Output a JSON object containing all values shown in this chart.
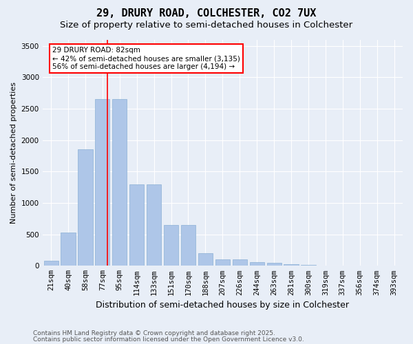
{
  "title1": "29, DRURY ROAD, COLCHESTER, CO2 7UX",
  "title2": "Size of property relative to semi-detached houses in Colchester",
  "xlabel": "Distribution of semi-detached houses by size in Colchester",
  "ylabel": "Number of semi-detached properties",
  "categories": [
    "21sqm",
    "40sqm",
    "58sqm",
    "77sqm",
    "95sqm",
    "114sqm",
    "133sqm",
    "151sqm",
    "170sqm",
    "188sqm",
    "207sqm",
    "226sqm",
    "244sqm",
    "263sqm",
    "281sqm",
    "300sqm",
    "319sqm",
    "337sqm",
    "356sqm",
    "374sqm",
    "393sqm"
  ],
  "values": [
    75,
    525,
    1850,
    2650,
    2650,
    1300,
    1300,
    650,
    650,
    200,
    100,
    100,
    60,
    50,
    20,
    10,
    5,
    3,
    2,
    1,
    0
  ],
  "bar_color": "#aec6e8",
  "bar_edgecolor": "#8ab0d4",
  "redline_x": 3.3,
  "annotation_text": "29 DRURY ROAD: 82sqm\n← 42% of semi-detached houses are smaller (3,135)\n56% of semi-detached houses are larger (4,194) →",
  "annotation_box_color": "white",
  "annotation_box_edgecolor": "red",
  "ylim": [
    0,
    3600
  ],
  "yticks": [
    0,
    500,
    1000,
    1500,
    2000,
    2500,
    3000,
    3500
  ],
  "background_color": "#e8eef7",
  "plot_bg_color": "#e8eef7",
  "grid_color": "white",
  "footer1": "Contains HM Land Registry data © Crown copyright and database right 2025.",
  "footer2": "Contains public sector information licensed under the Open Government Licence v3.0.",
  "title1_fontsize": 11,
  "title2_fontsize": 9.5,
  "xlabel_fontsize": 9,
  "ylabel_fontsize": 8,
  "tick_fontsize": 7.5,
  "annotation_fontsize": 7.5,
  "footer_fontsize": 6.5
}
